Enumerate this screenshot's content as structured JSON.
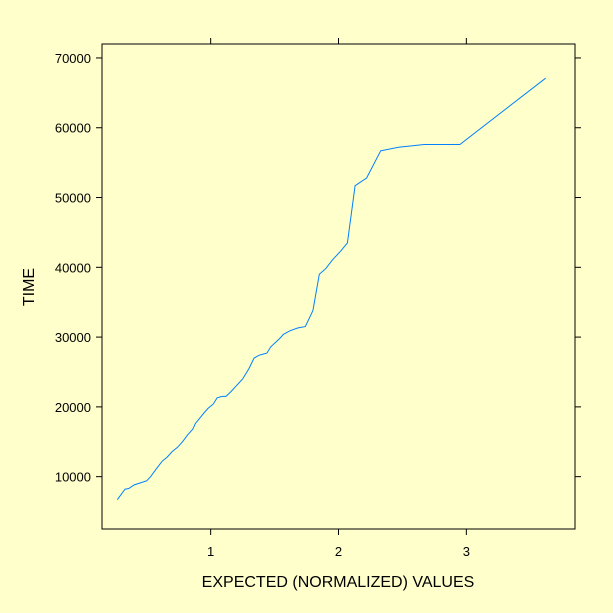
{
  "colors": {
    "background": "#ffffcc",
    "line": "#0080ff",
    "frame": "#000000"
  },
  "chart_data": {
    "type": "line",
    "title": "",
    "xlabel": "EXPECTED (NORMALIZED) VALUES",
    "ylabel": "TIME",
    "xlim": [
      0.15,
      3.85
    ],
    "ylim": [
      2500,
      72000
    ],
    "xticks": [
      1,
      2,
      3
    ],
    "xtick_labels": [
      "1",
      "2",
      "3"
    ],
    "yticks": [
      10000,
      20000,
      30000,
      40000,
      50000,
      60000,
      70000
    ],
    "ytick_labels": [
      "10000",
      "20000",
      "30000",
      "40000",
      "50000",
      "60000",
      "70000"
    ],
    "grid": false,
    "series": [
      {
        "x": [
          0.27,
          0.33,
          0.36,
          0.4,
          0.45,
          0.5,
          0.53,
          0.57,
          0.62,
          0.66,
          0.7,
          0.74,
          0.78,
          0.82,
          0.86,
          0.88,
          0.92,
          0.95,
          0.98,
          1.02,
          1.05,
          1.09,
          1.12,
          1.16,
          1.2,
          1.25,
          1.3,
          1.34,
          1.38,
          1.4,
          1.44,
          1.47,
          1.54,
          1.57,
          1.62,
          1.68,
          1.74,
          1.8,
          1.85,
          1.9,
          1.95,
          2.02,
          2.07,
          2.13,
          2.22,
          2.33,
          2.47,
          2.67,
          2.95,
          3.62
        ],
        "y": [
          6700,
          8200,
          8300,
          8800,
          9100,
          9400,
          10000,
          11000,
          12200,
          12800,
          13600,
          14200,
          15000,
          16000,
          16800,
          17600,
          18500,
          19200,
          19800,
          20400,
          21300,
          21500,
          21500,
          22200,
          23000,
          24000,
          25500,
          27000,
          27400,
          27500,
          27700,
          28600,
          29800,
          30400,
          30900,
          31300,
          31500,
          33800,
          39000,
          39800,
          41000,
          42400,
          43500,
          51700,
          52800,
          56700,
          57200,
          57600,
          57600,
          67100
        ]
      }
    ]
  }
}
